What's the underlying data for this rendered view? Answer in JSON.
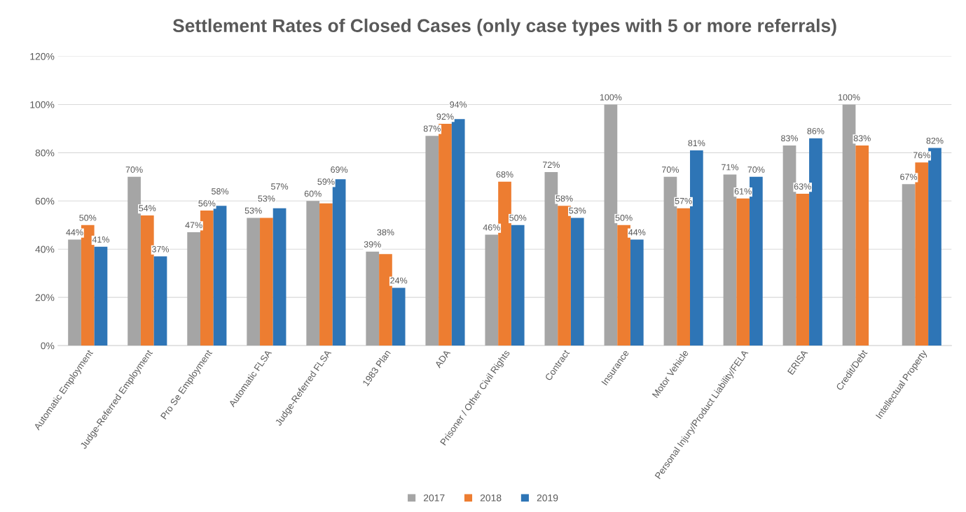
{
  "chart_data": {
    "type": "bar",
    "title": "Settlement Rates of Closed Cases (only case types with 5 or more referrals)",
    "categories": [
      "Automatic Employment",
      "Judge-Referred Employment",
      "Pro Se Employment",
      "Automatic FLSA",
      "Judge-Referred FLSA",
      "1983 Plan",
      "ADA",
      "Prisoner / Other Civil Rights",
      "Contract",
      "Insurance",
      "Motor Vehicle",
      "Personal Injury/Product Liability/FELA",
      "ERISA",
      "Credit/Debt",
      "Intellectual Property"
    ],
    "series": [
      {
        "name": "2017",
        "color": "#a5a5a5",
        "values": [
          44,
          70,
          47,
          53,
          60,
          39,
          87,
          46,
          72,
          100,
          70,
          71,
          83,
          100,
          67
        ],
        "value_labels": [
          "44%",
          "70%",
          "47%",
          "53%",
          "60%",
          "39%",
          "87%",
          "46%",
          "72%",
          "100%",
          "70%",
          "71%",
          "83%",
          "100%",
          "67%"
        ]
      },
      {
        "name": "2018",
        "color": "#ed7d31",
        "values": [
          50,
          54,
          56,
          53,
          59,
          38,
          92,
          68,
          58,
          50,
          57,
          61,
          63,
          83,
          76
        ],
        "value_labels": [
          "50%",
          "54%",
          "56%",
          "53%",
          "59%",
          "38%",
          "92%",
          "68%",
          "58%",
          "50%",
          "57%",
          "61%",
          "63%",
          "83%",
          "76%"
        ]
      },
      {
        "name": "2019",
        "color": "#2e75b6",
        "values": [
          41,
          37,
          58,
          57,
          69,
          24,
          94,
          50,
          53,
          44,
          81,
          70,
          86,
          null,
          82
        ],
        "value_labels": [
          "41%",
          "37%",
          "58%",
          "57%",
          "69%",
          "24%",
          "94%",
          "50%",
          "53%",
          "44%",
          "81%",
          "70%",
          "86%",
          null,
          "82%"
        ]
      }
    ],
    "ylim": [
      0,
      120
    ],
    "yticks": [
      {
        "value": 0,
        "label": "0%"
      },
      {
        "value": 20,
        "label": "20%"
      },
      {
        "value": 40,
        "label": "40%"
      },
      {
        "value": 60,
        "label": "60%"
      },
      {
        "value": 80,
        "label": "80%"
      },
      {
        "value": 100,
        "label": "100%"
      },
      {
        "value": 120,
        "label": "120%"
      }
    ],
    "grid": "y",
    "legend": "bottom"
  }
}
